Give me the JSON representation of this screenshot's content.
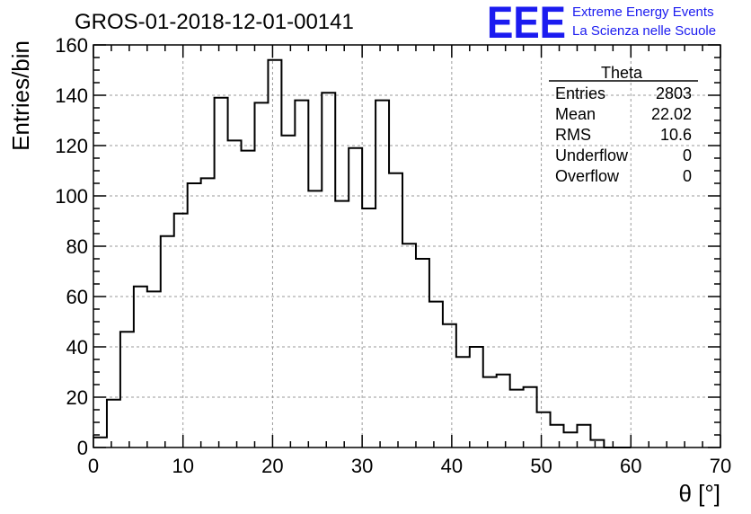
{
  "chart_data": {
    "type": "bar",
    "title": "GROS-01-2018-12-01-00141",
    "xlabel": "θ [°]",
    "ylabel": "Entries/bin",
    "xlim": [
      0,
      70
    ],
    "ylim": [
      0,
      160
    ],
    "grid": true,
    "x_ticks": [
      0,
      10,
      20,
      30,
      40,
      50,
      60,
      70
    ],
    "y_ticks": [
      0,
      20,
      40,
      60,
      80,
      100,
      120,
      140,
      160
    ],
    "bin_edges_start": 0,
    "bin_width": 1.5,
    "values": [
      4,
      19,
      46,
      64,
      62,
      84,
      93,
      105,
      107,
      139,
      122,
      118,
      137,
      154,
      124,
      138,
      102,
      141,
      98,
      119,
      95,
      138,
      109,
      81,
      75,
      58,
      49,
      36,
      40,
      28,
      29,
      23,
      24,
      14,
      9,
      6,
      9,
      3,
      0,
      0
    ],
    "stats": {
      "name": "Theta",
      "rows": [
        {
          "label": "Entries",
          "value": "2803"
        },
        {
          "label": "Mean",
          "value": "22.02"
        },
        {
          "label": "RMS",
          "value": "10.6"
        },
        {
          "label": "Underflow",
          "value": "0"
        },
        {
          "label": "Overflow",
          "value": "0"
        }
      ]
    },
    "legend_placement": "top-right",
    "line_color": "#000000"
  },
  "logo": {
    "mark": "EEE",
    "line1": "Extreme Energy Events",
    "line2": "La Scienza nelle Scuole",
    "color": "#1b1bf0"
  }
}
